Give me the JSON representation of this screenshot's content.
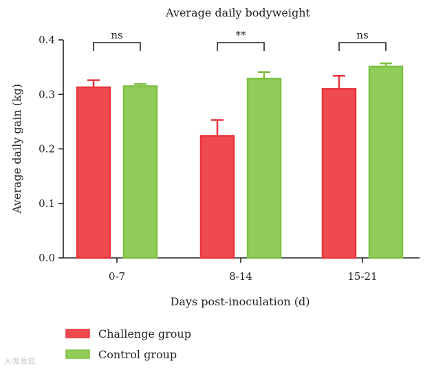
{
  "chart_data": {
    "type": "bar",
    "title": "Average daily bodyweight",
    "xlabel": "Days post-inoculation (d)",
    "ylabel": "Average daily gain (kg)",
    "ylim": [
      0,
      0.4
    ],
    "yticks": [
      0.0,
      0.1,
      0.2,
      0.3,
      0.4
    ],
    "ytick_labels": [
      "0.0",
      "0.1",
      "0.2",
      "0.3",
      "0.4"
    ],
    "categories": [
      "0-7",
      "8-14",
      "15-21"
    ],
    "series": [
      {
        "name": "Challenge group",
        "color": "#e8353d",
        "fill": "#ee4a50",
        "values": [
          0.313,
          0.224,
          0.31
        ],
        "errors": [
          0.013,
          0.029,
          0.024
        ]
      },
      {
        "name": "Control group",
        "color": "#7cc043",
        "fill": "#8fcc58",
        "values": [
          0.315,
          0.329,
          0.351
        ],
        "errors": [
          0.004,
          0.012,
          0.006
        ]
      }
    ],
    "significance": [
      "ns",
      "**",
      "ns"
    ],
    "legend_position": "bottom-left"
  },
  "watermark": "大咖易知"
}
